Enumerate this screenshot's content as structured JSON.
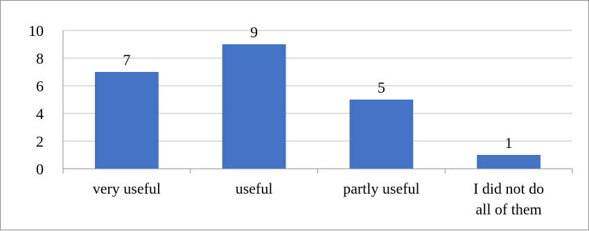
{
  "chart_data": {
    "type": "bar",
    "categories": [
      "very useful",
      "useful",
      "partly useful",
      "I did not do all of them"
    ],
    "category_lines": [
      [
        "very useful"
      ],
      [
        "useful"
      ],
      [
        "partly useful"
      ],
      [
        "I did not do",
        "all of them"
      ]
    ],
    "values": [
      7,
      9,
      5,
      1
    ],
    "data_labels": [
      "7",
      "9",
      "5",
      "1"
    ],
    "ylim": [
      0,
      10
    ],
    "yticks": [
      0,
      2,
      4,
      6,
      8,
      10
    ],
    "title": "",
    "xlabel": "",
    "ylabel": "",
    "grid": true,
    "legend": "none",
    "bar_color": "#4472C4",
    "grid_color": "#bfbfbf",
    "axis_color": "#8c8c8c"
  }
}
